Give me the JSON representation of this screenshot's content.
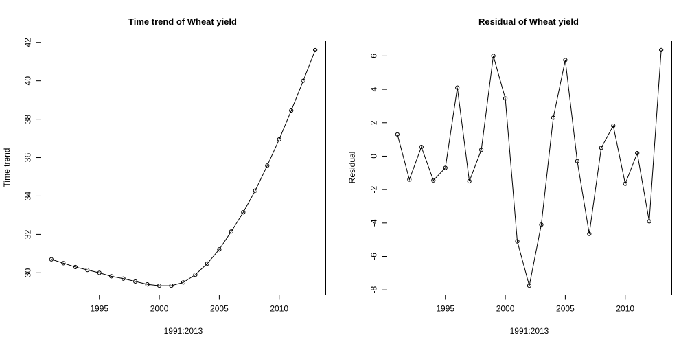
{
  "chart_data": [
    {
      "type": "line",
      "title": "Time trend of Wheat yield",
      "xlabel": "1991:2013",
      "ylabel": "Time trend",
      "x": [
        1991,
        1992,
        1993,
        1994,
        1995,
        1996,
        1997,
        1998,
        1999,
        2000,
        2001,
        2002,
        2003,
        2004,
        2005,
        2006,
        2007,
        2008,
        2009,
        2010,
        2011,
        2012,
        2013
      ],
      "series": [
        {
          "values": [
            30.7,
            30.5,
            30.3,
            30.15,
            30.0,
            29.82,
            29.7,
            29.55,
            29.4,
            29.33,
            29.33,
            29.5,
            29.9,
            30.48,
            31.22,
            32.15,
            33.15,
            34.28,
            35.58,
            36.95,
            38.45,
            40.0,
            41.6
          ]
        }
      ],
      "xticks": [
        1995,
        2000,
        2005,
        2010
      ],
      "xtick_labels": [
        "1995",
        "2000",
        "2005",
        "2010"
      ],
      "yticks": [
        30,
        32,
        34,
        36,
        38,
        40,
        42
      ],
      "ytick_labels": [
        "30",
        "32",
        "34",
        "36",
        "38",
        "40",
        "42"
      ],
      "xlim": [
        1990.12,
        2013.88
      ],
      "ylim": [
        28.85,
        42.08
      ],
      "grid": false,
      "markers": "open-circle"
    },
    {
      "type": "line",
      "title": "Residual of Wheat yield",
      "xlabel": "1991:2013",
      "ylabel": "Residual",
      "x": [
        1991,
        1992,
        1993,
        1994,
        1995,
        1996,
        1997,
        1998,
        1999,
        2000,
        2001,
        2002,
        2003,
        2004,
        2005,
        2006,
        2007,
        2008,
        2009,
        2010,
        2011,
        2012,
        2013
      ],
      "series": [
        {
          "values": [
            1.3,
            -1.4,
            0.55,
            -1.45,
            -0.7,
            4.1,
            -1.5,
            0.38,
            6.0,
            3.45,
            -5.1,
            -7.75,
            -4.1,
            2.3,
            5.75,
            -0.3,
            -4.65,
            0.5,
            1.82,
            -1.65,
            0.18,
            -3.9,
            6.35
          ]
        }
      ],
      "xticks": [
        1995,
        2000,
        2005,
        2010
      ],
      "xtick_labels": [
        "1995",
        "2000",
        "2005",
        "2010"
      ],
      "yticks": [
        -8,
        -6,
        -4,
        -2,
        0,
        2,
        4,
        6
      ],
      "ytick_labels": [
        "-8",
        "-6",
        "-4",
        "-2",
        "0",
        "2",
        "4",
        "6"
      ],
      "xlim": [
        1990.12,
        2013.88
      ],
      "ylim": [
        -8.3,
        6.9
      ],
      "grid": false,
      "markers": "open-circle"
    }
  ]
}
